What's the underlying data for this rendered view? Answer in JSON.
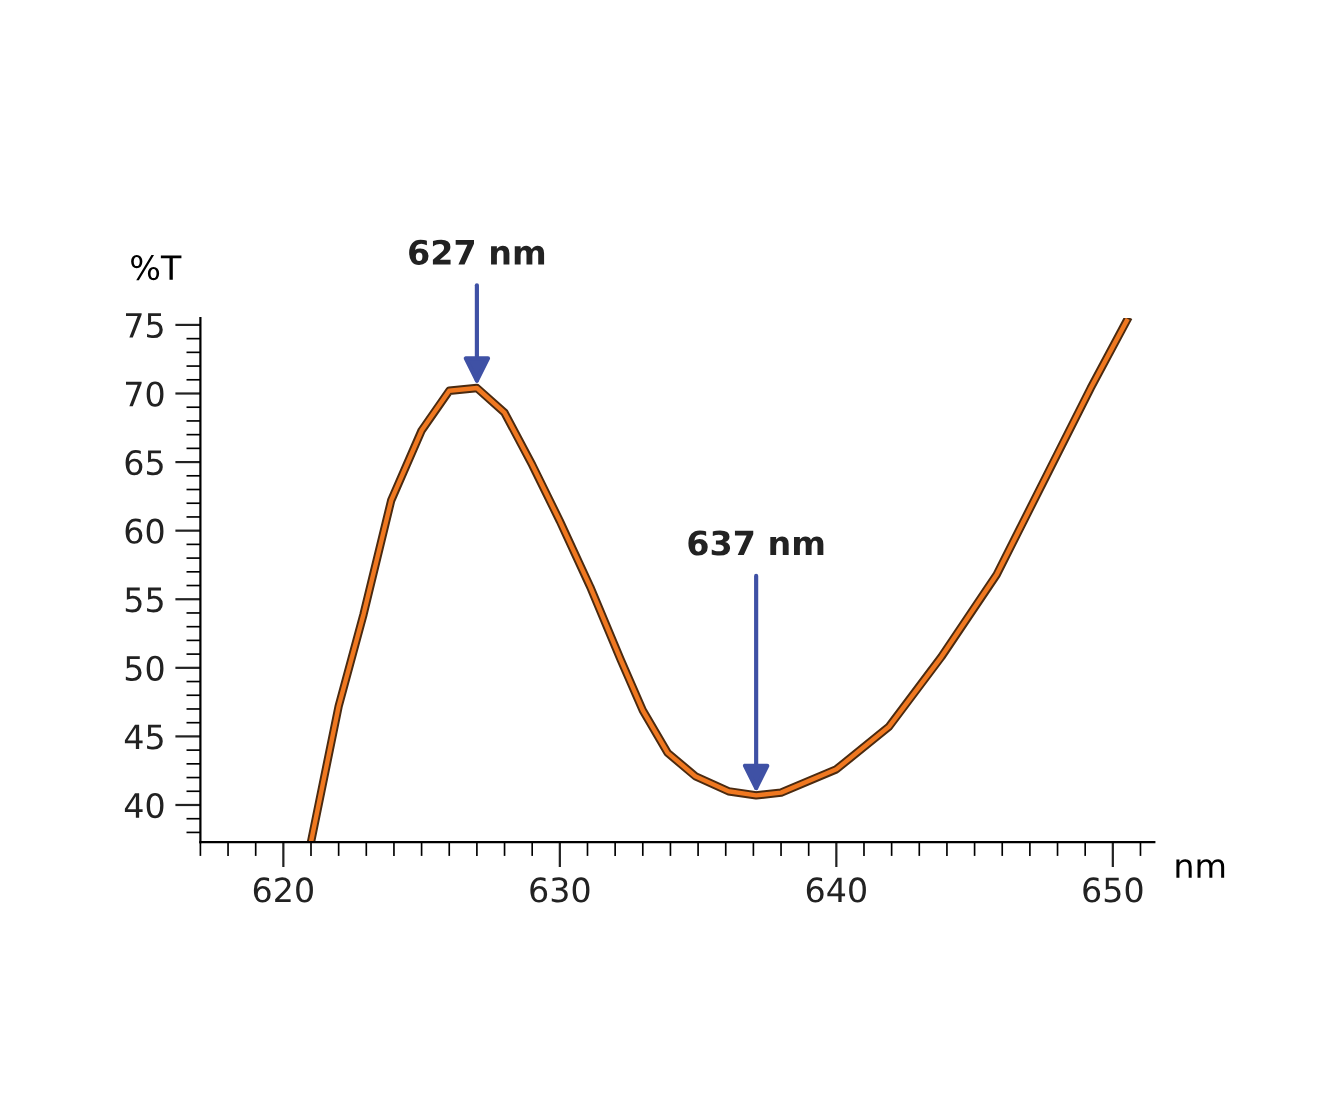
{
  "chart_data": {
    "type": "line",
    "xlabel": "nm",
    "ylabel": "%T",
    "x": [
      621.0,
      622.0,
      622.9,
      623.9,
      625.0,
      626.0,
      627.0,
      628.0,
      629.0,
      630.0,
      631.1,
      632.2,
      633.0,
      633.9,
      634.9,
      636.1,
      637.1,
      638.0,
      640.0,
      641.9,
      643.8,
      645.8,
      647.7,
      649.2,
      650.5
    ],
    "series": [
      {
        "color": "#f07820",
        "values": [
          37.3,
          47.2,
          53.9,
          62.2,
          67.3,
          70.2,
          70.4,
          68.6,
          64.8,
          60.7,
          55.9,
          50.6,
          46.9,
          43.8,
          42.1,
          41.0,
          40.7,
          40.9,
          42.6,
          45.7,
          50.8,
          56.8,
          64.4,
          70.4,
          75.3
        ]
      }
    ],
    "xlim": [
      617,
      651.5
    ],
    "ylim": [
      37.3,
      75.5
    ],
    "xticks": [
      620,
      630,
      640,
      650
    ],
    "yticks": [
      40,
      45,
      50,
      55,
      60,
      65,
      70,
      75
    ],
    "annotations": [
      {
        "text": "627 nm",
        "x": 627.0,
        "y": 70.4
      },
      {
        "text": "637 nm",
        "x": 637.1,
        "y": 40.7
      }
    ],
    "grid": false,
    "legend": false,
    "marker": "none",
    "line_style": "solid"
  }
}
